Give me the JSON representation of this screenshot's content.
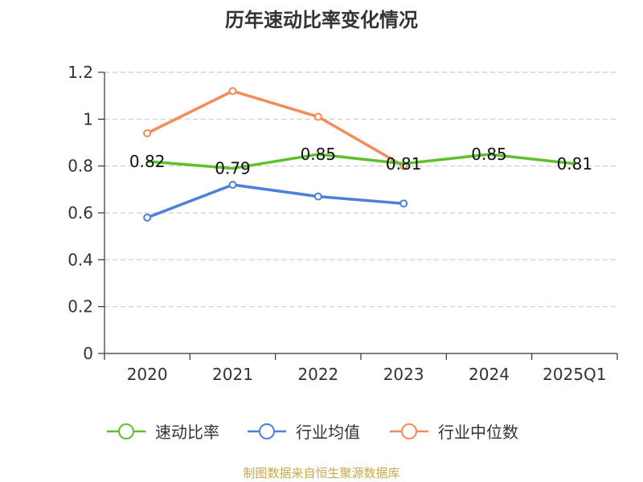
{
  "chart_data": {
    "type": "line",
    "title": "历年速动比率变化情况",
    "categories": [
      "2020",
      "2021",
      "2022",
      "2023",
      "2024",
      "2025Q1"
    ],
    "ylim": [
      0,
      1.2
    ],
    "yticks": [
      "0",
      "0.2",
      "0.4",
      "0.6",
      "0.8",
      "1",
      "1.2"
    ],
    "ytick_values": [
      0,
      0.2,
      0.4,
      0.6,
      0.8,
      1.0,
      1.2
    ],
    "grid": true,
    "legend_position": "bottom",
    "series": [
      {
        "name": "速动比率",
        "color": "#5ec02e",
        "values": [
          0.82,
          0.79,
          0.85,
          0.81,
          0.85,
          0.81
        ],
        "labels": [
          "0.82",
          "0.79",
          "0.85",
          "0.81",
          "0.85",
          "0.81"
        ],
        "show_labels": true,
        "markers": false
      },
      {
        "name": "行业均值",
        "color": "#4f7fd8",
        "values": [
          0.58,
          0.72,
          0.67,
          0.64,
          null,
          null
        ],
        "show_labels": false,
        "markers": true
      },
      {
        "name": "行业中位数",
        "color": "#f28c5b",
        "values": [
          0.94,
          1.12,
          1.01,
          0.8,
          null,
          null
        ],
        "show_labels": false,
        "markers": true
      }
    ],
    "source": "制图数据来自恒生聚源数据库"
  }
}
